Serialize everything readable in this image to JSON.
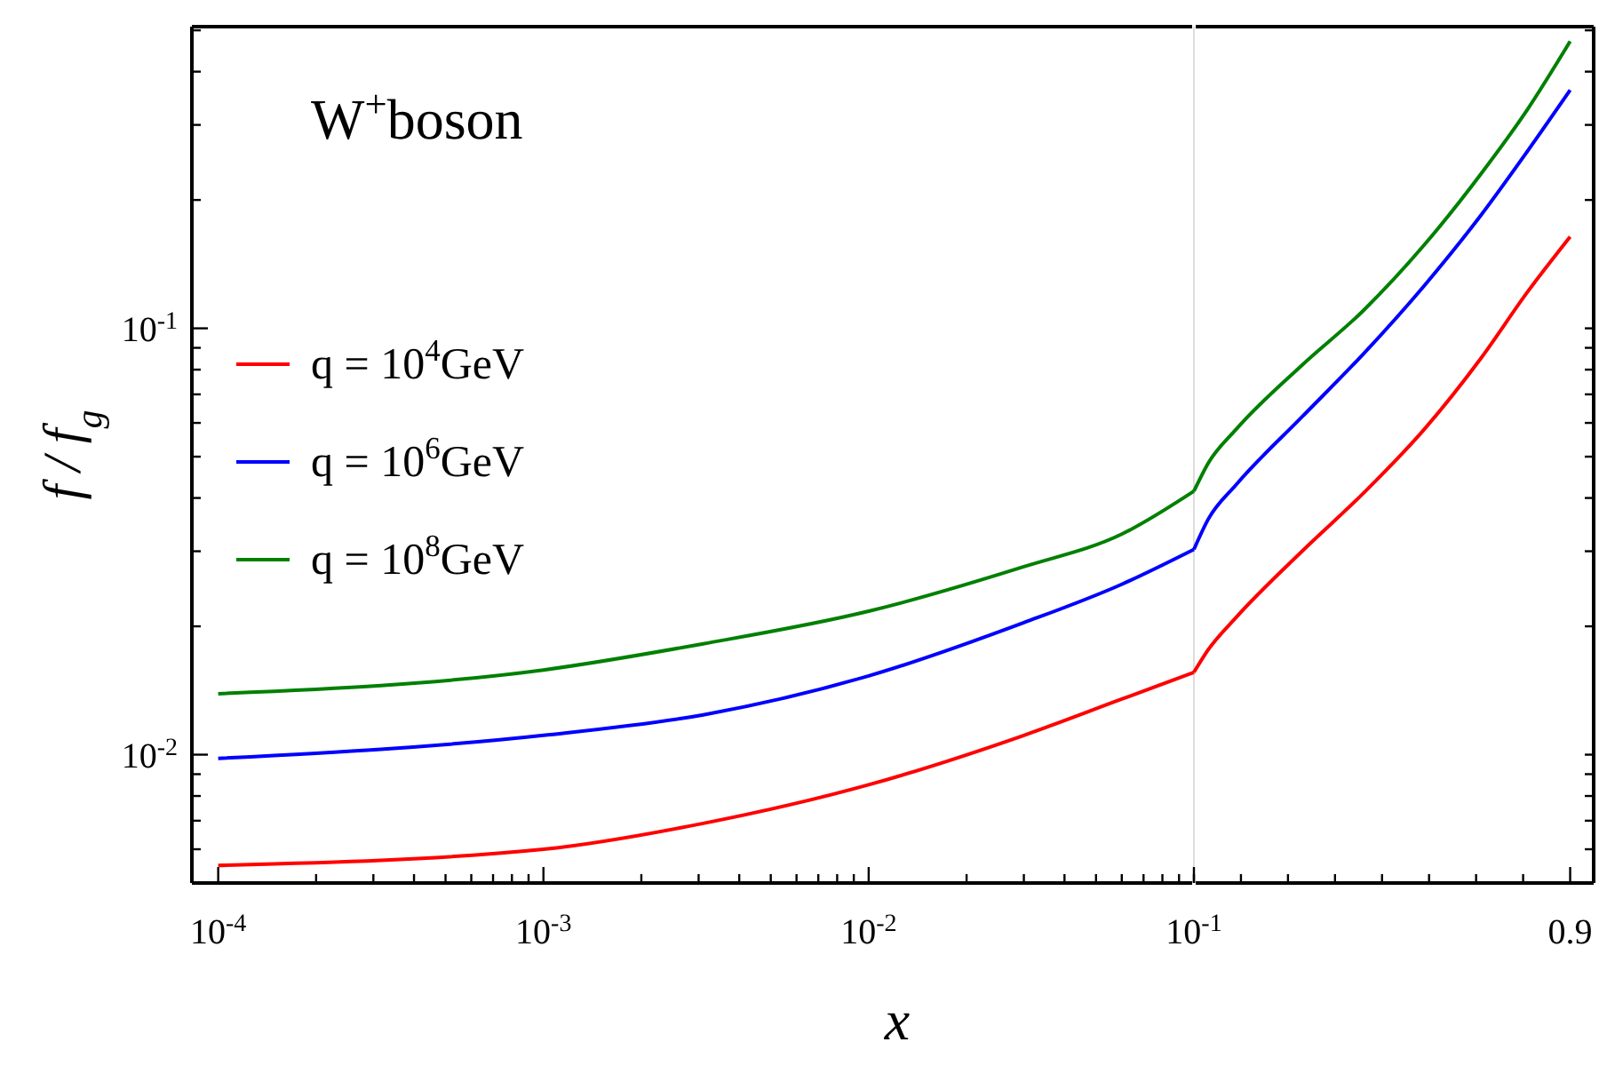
{
  "chart_data": [
    {
      "type": "line",
      "title": "W$^{+}$boson",
      "xlabel": "x",
      "ylabel": "f / f$_{g}$",
      "x": [
        0.0001,
        0.001,
        0.0031,
        0.01,
        0.03,
        0.06,
        0.1
      ],
      "series": [
        {
          "name": "q = 10$^{4}$GeV",
          "color": "#ff0000",
          "values": [
            0.0055,
            0.006,
            0.0069,
            0.0085,
            0.0111,
            0.0135,
            0.0156
          ]
        },
        {
          "name": "q = 10$^{6}$GeV",
          "color": "#0000ff",
          "values": [
            0.0098,
            0.0111,
            0.0124,
            0.0153,
            0.0204,
            0.0251,
            0.0303
          ]
        },
        {
          "name": "q = 10$^{8}$GeV",
          "color": "#008000",
          "values": [
            0.0139,
            0.0158,
            0.0182,
            0.0217,
            0.0276,
            0.0329,
            0.0415
          ]
        }
      ],
      "log": "xy",
      "xlim": [
        8.3e-05,
        0.1
      ],
      "ylim": [
        0.005,
        0.51
      ],
      "xticks": [
        {
          "value": 0.0001,
          "label": "10$^{-4}$"
        },
        {
          "value": 0.0002,
          "label": null
        },
        {
          "value": 0.0003,
          "label": null
        },
        {
          "value": 0.0004,
          "label": null
        },
        {
          "value": 0.0005,
          "label": null
        },
        {
          "value": 0.0006,
          "label": null
        },
        {
          "value": 0.0007,
          "label": null
        },
        {
          "value": 0.0008,
          "label": null
        },
        {
          "value": 0.0009,
          "label": null
        },
        {
          "value": 0.001,
          "label": "10$^{-3}$"
        },
        {
          "value": 0.002,
          "label": null
        },
        {
          "value": 0.003,
          "label": null
        },
        {
          "value": 0.004,
          "label": null
        },
        {
          "value": 0.005,
          "label": null
        },
        {
          "value": 0.006,
          "label": null
        },
        {
          "value": 0.007,
          "label": null
        },
        {
          "value": 0.008,
          "label": null
        },
        {
          "value": 0.009,
          "label": null
        },
        {
          "value": 0.01,
          "label": "10$^{-2}$"
        },
        {
          "value": 0.02,
          "label": null
        },
        {
          "value": 0.03,
          "label": null
        },
        {
          "value": 0.04,
          "label": null
        },
        {
          "value": 0.05,
          "label": null
        },
        {
          "value": 0.06,
          "label": null
        },
        {
          "value": 0.07,
          "label": null
        },
        {
          "value": 0.08,
          "label": null
        },
        {
          "value": 0.09,
          "label": null
        },
        {
          "value": 0.1,
          "label": null
        }
      ],
      "yticks": [
        {
          "value": 0.006,
          "label": null
        },
        {
          "value": 0.007,
          "label": null
        },
        {
          "value": 0.008,
          "label": null
        },
        {
          "value": 0.009,
          "label": null
        },
        {
          "value": 0.01,
          "label": "10$^{-2}$"
        },
        {
          "value": 0.02,
          "label": null
        },
        {
          "value": 0.03,
          "label": null
        },
        {
          "value": 0.04,
          "label": null
        },
        {
          "value": 0.05,
          "label": null
        },
        {
          "value": 0.06,
          "label": null
        },
        {
          "value": 0.07,
          "label": null
        },
        {
          "value": 0.08,
          "label": null
        },
        {
          "value": 0.09,
          "label": null
        },
        {
          "value": 0.1,
          "label": "10$^{-1}$"
        },
        {
          "value": 0.2,
          "label": null
        },
        {
          "value": 0.3,
          "label": null
        },
        {
          "value": 0.4,
          "label": null
        },
        {
          "value": 0.5,
          "label": null
        }
      ],
      "ref_lines": [
        {
          "axis": "x",
          "value": 0.1,
          "color": "#dddddd"
        }
      ],
      "legend": "left",
      "grid": false,
      "marker": "none",
      "line_style": "solid"
    },
    {
      "type": "line",
      "x": [
        0.1,
        0.13,
        0.19,
        0.33,
        0.46,
        0.59,
        0.71,
        0.81,
        0.9
      ],
      "series": [
        {
          "color": "#ff0000",
          "values": [
            0.0156,
            0.0176,
            0.021,
            0.03,
            0.041,
            0.058,
            0.085,
            0.122,
            0.164
          ]
        },
        {
          "color": "#0000ff",
          "values": [
            0.0303,
            0.0356,
            0.043,
            0.062,
            0.087,
            0.126,
            0.184,
            0.261,
            0.362
          ]
        },
        {
          "color": "#008000",
          "values": [
            0.0415,
            0.0482,
            0.058,
            0.082,
            0.11,
            0.157,
            0.23,
            0.327,
            0.471
          ]
        }
      ],
      "log": "y",
      "xlim": [
        0.1,
        0.95
      ],
      "ylim": [
        0.005,
        0.51
      ],
      "tick_labels": "x",
      "xticks": [
        {
          "value": 0.1,
          "label": "10$^{-1}$"
        },
        {
          "value": 0.2,
          "label": null
        },
        {
          "value": 0.3,
          "label": null
        },
        {
          "value": 0.4,
          "label": null
        },
        {
          "value": 0.5,
          "label": null
        },
        {
          "value": 0.6,
          "label": null
        },
        {
          "value": 0.7,
          "label": null
        },
        {
          "value": 0.8,
          "label": null
        },
        0.9
      ],
      "yticks": [
        {
          "value": 0.006,
          "label": null
        },
        {
          "value": 0.007,
          "label": null
        },
        {
          "value": 0.008,
          "label": null
        },
        {
          "value": 0.009,
          "label": null
        },
        {
          "value": 0.01,
          "label": null
        },
        {
          "value": 0.02,
          "label": null
        },
        {
          "value": 0.03,
          "label": null
        },
        {
          "value": 0.04,
          "label": null
        },
        {
          "value": 0.05,
          "label": null
        },
        {
          "value": 0.06,
          "label": null
        },
        {
          "value": 0.07,
          "label": null
        },
        {
          "value": 0.08,
          "label": null
        },
        {
          "value": 0.09,
          "label": null
        },
        {
          "value": 0.1,
          "label": null
        },
        {
          "value": 0.2,
          "label": null
        },
        {
          "value": 0.3,
          "label": null
        },
        {
          "value": 0.4,
          "label": null
        },
        {
          "value": 0.5,
          "label": null
        }
      ],
      "grid": false,
      "marker": "none",
      "line_style": "solid"
    }
  ]
}
